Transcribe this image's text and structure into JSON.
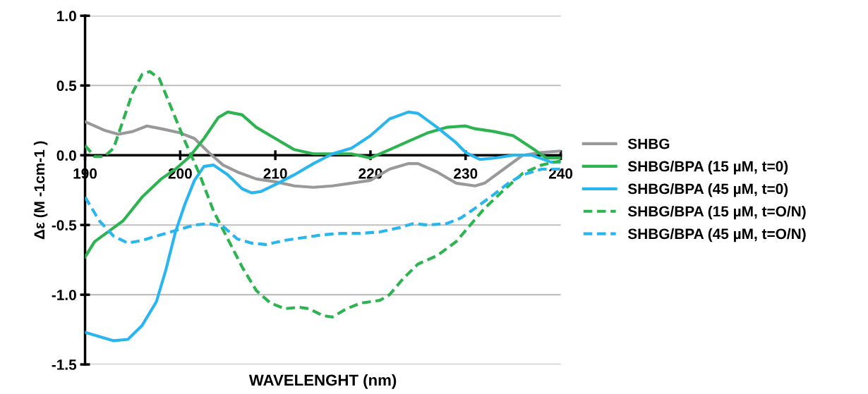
{
  "chart_data": {
    "type": "line",
    "xlabel": "WAVELENGHT (nm)",
    "ylabel": "Δε (M -1cm-1 )",
    "xlim": [
      190,
      240
    ],
    "xticks": [
      190,
      200,
      210,
      220,
      230,
      240
    ],
    "ylim": [
      -1.5,
      1.0
    ],
    "yticks": [
      {
        "value": -1.5,
        "label": "-1.5"
      },
      {
        "value": -1.0,
        "label": "-1.0"
      },
      {
        "value": -0.5,
        "label": "-0.5"
      },
      {
        "value": 0,
        "label": "0.0"
      },
      {
        "value": 0.5,
        "label": "0.5"
      },
      {
        "value": 1.0,
        "label": "1.0"
      }
    ],
    "grid": "y",
    "legend": "right",
    "marker": "none",
    "series": [
      {
        "name": "SHBG",
        "color": "#999999",
        "line_style": "solid",
        "x": [
          190,
          192,
          193.5,
          195,
          196.5,
          198,
          200,
          201.5,
          203,
          204.5,
          206,
          208,
          210,
          212,
          214,
          216,
          218,
          220,
          222,
          224,
          225,
          227,
          229,
          231,
          232,
          234,
          236,
          238,
          240
        ],
        "values": [
          0.24,
          0.18,
          0.15,
          0.17,
          0.21,
          0.19,
          0.16,
          0.12,
          0.02,
          -0.07,
          -0.12,
          -0.17,
          -0.19,
          -0.22,
          -0.23,
          -0.22,
          -0.2,
          -0.18,
          -0.1,
          -0.06,
          -0.06,
          -0.12,
          -0.2,
          -0.22,
          -0.2,
          -0.1,
          0.0,
          0.02,
          0.03
        ]
      },
      {
        "name": "SHBG/BPA (15 µM, t=0)",
        "color": "#2db350",
        "line_style": "solid",
        "x": [
          190,
          191,
          193,
          194,
          196,
          198,
          199.5,
          201,
          202.5,
          204,
          205,
          206.5,
          208,
          210,
          212,
          214,
          216,
          218,
          220,
          222,
          224,
          226,
          228,
          230,
          231,
          233,
          235,
          237,
          238.5,
          240
        ],
        "values": [
          -0.73,
          -0.62,
          -0.52,
          -0.47,
          -0.3,
          -0.17,
          -0.1,
          -0.01,
          0.12,
          0.27,
          0.31,
          0.29,
          0.2,
          0.12,
          0.04,
          0.01,
          0.01,
          0.01,
          -0.02,
          0.04,
          0.1,
          0.16,
          0.2,
          0.21,
          0.19,
          0.17,
          0.14,
          0.05,
          -0.02,
          -0.02
        ]
      },
      {
        "name": "SHBG/BPA (45 µM, t=0)",
        "color": "#29b6ef",
        "line_style": "solid",
        "x": [
          190,
          191.5,
          193,
          194.5,
          196,
          197.5,
          198.5,
          199.5,
          200.5,
          201.5,
          202.5,
          203.5,
          205,
          206.5,
          207.5,
          208.5,
          210,
          212,
          214,
          216,
          218,
          220,
          222,
          224,
          225,
          227,
          229,
          230,
          231.5,
          233,
          235,
          237,
          239,
          240
        ],
        "values": [
          -1.27,
          -1.3,
          -1.33,
          -1.32,
          -1.22,
          -1.05,
          -0.82,
          -0.55,
          -0.35,
          -0.18,
          -0.08,
          -0.07,
          -0.14,
          -0.24,
          -0.27,
          -0.26,
          -0.21,
          -0.14,
          -0.06,
          0.01,
          0.05,
          0.14,
          0.26,
          0.31,
          0.3,
          0.2,
          0.09,
          0.02,
          -0.03,
          -0.02,
          0.0,
          0.0,
          -0.05,
          -0.05
        ]
      },
      {
        "name": "SHBG/BPA (15 µM, t=O/N)",
        "color": "#2db350",
        "line_style": "dashed",
        "x": [
          190,
          191,
          192,
          193,
          194,
          195,
          196,
          196.8,
          197.8,
          199,
          200.5,
          202,
          203.5,
          205,
          206.5,
          208,
          209.5,
          211,
          212.5,
          213.5,
          215,
          216,
          217.5,
          219,
          221,
          222,
          223.5,
          225,
          227,
          229,
          230.5,
          232,
          234,
          236,
          238,
          240
        ],
        "values": [
          0.07,
          -0.01,
          -0.01,
          0.05,
          0.25,
          0.45,
          0.58,
          0.6,
          0.55,
          0.35,
          0.1,
          -0.13,
          -0.4,
          -0.6,
          -0.8,
          -0.97,
          -1.06,
          -1.1,
          -1.09,
          -1.1,
          -1.15,
          -1.16,
          -1.1,
          -1.06,
          -1.04,
          -1.0,
          -0.88,
          -0.78,
          -0.72,
          -0.62,
          -0.5,
          -0.38,
          -0.25,
          -0.13,
          -0.07,
          -0.04
        ]
      },
      {
        "name": "SHBG/BPA (45 µM, t=O/N)",
        "color": "#29b6ef",
        "line_style": "dashed",
        "x": [
          190,
          191.5,
          193,
          194.5,
          196,
          198,
          200,
          201.5,
          203,
          204.5,
          206,
          207.5,
          209,
          211,
          213,
          215,
          217,
          219,
          221,
          223,
          224.5,
          226,
          228,
          229.5,
          231,
          233,
          234.5,
          236,
          238,
          240
        ],
        "values": [
          -0.3,
          -0.47,
          -0.58,
          -0.63,
          -0.61,
          -0.57,
          -0.53,
          -0.5,
          -0.49,
          -0.51,
          -0.6,
          -0.63,
          -0.64,
          -0.61,
          -0.59,
          -0.57,
          -0.56,
          -0.56,
          -0.55,
          -0.52,
          -0.49,
          -0.5,
          -0.49,
          -0.45,
          -0.38,
          -0.28,
          -0.2,
          -0.14,
          -0.1,
          -0.1
        ]
      }
    ]
  }
}
